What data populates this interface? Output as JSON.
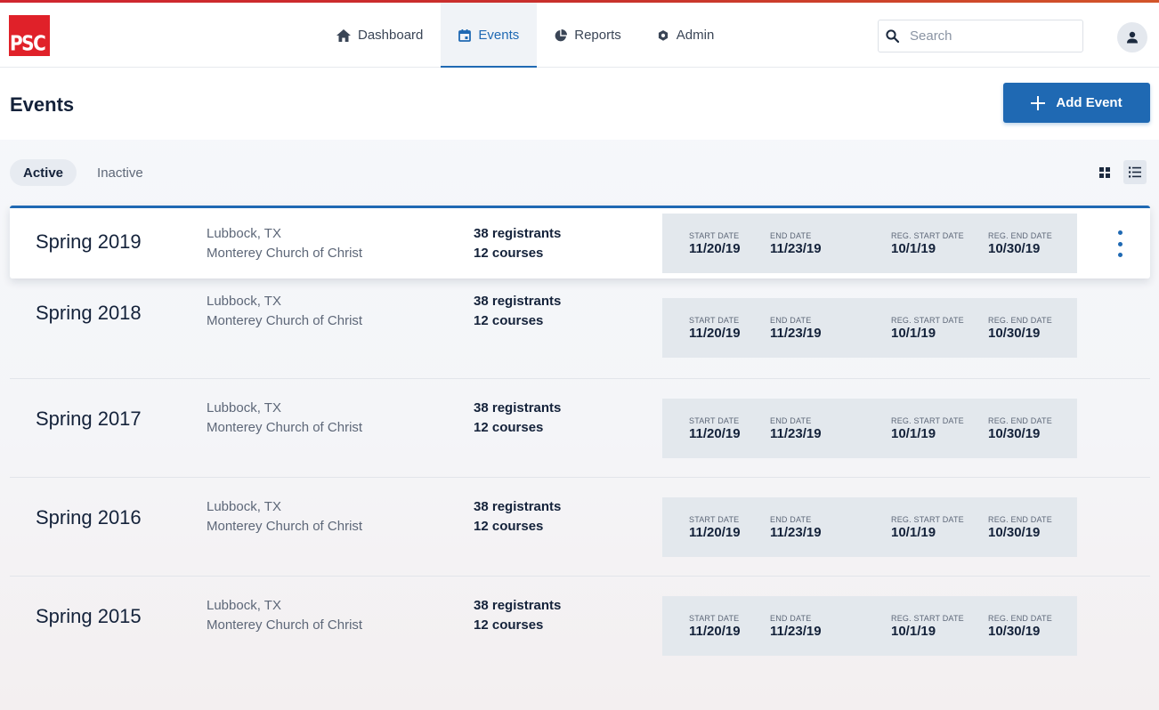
{
  "app": {
    "logo_text": "PSC",
    "brand_color": "#e02129",
    "accent_color": "#1f69b3"
  },
  "nav": {
    "items": [
      {
        "label": "Dashboard",
        "icon": "home-icon",
        "active": false
      },
      {
        "label": "Events",
        "icon": "calendar-icon",
        "active": true
      },
      {
        "label": "Reports",
        "icon": "pie-chart-icon",
        "active": false
      },
      {
        "label": "Admin",
        "icon": "gear-icon",
        "active": false
      }
    ]
  },
  "search": {
    "placeholder": "Search",
    "value": ""
  },
  "page": {
    "title": "Events",
    "add_button_label": "Add Event"
  },
  "filters": [
    {
      "label": "Active",
      "active": true
    },
    {
      "label": "Inactive",
      "active": false
    }
  ],
  "view_toggle": {
    "selected": "list"
  },
  "date_labels": {
    "start": "START DATE",
    "end": "END DATE",
    "reg_start": "REG. START DATE",
    "reg_end": "REG. END DATE"
  },
  "events": [
    {
      "name": "Spring 2019",
      "city": "Lubbock, TX",
      "venue": "Monterey Church of Christ",
      "registrants_count": "38",
      "registrants_label": "registrants",
      "courses_count": "12",
      "courses_label": "courses",
      "start_date": "11/20/19",
      "end_date": "11/23/19",
      "reg_start": "10/1/19",
      "reg_end": "10/30/19",
      "selected": true
    },
    {
      "name": "Spring 2018",
      "city": "Lubbock, TX",
      "venue": "Monterey Church of Christ",
      "registrants_count": "38",
      "registrants_label": "registrants",
      "courses_count": "12",
      "courses_label": "courses",
      "start_date": "11/20/19",
      "end_date": "11/23/19",
      "reg_start": "10/1/19",
      "reg_end": "10/30/19",
      "selected": false
    },
    {
      "name": "Spring 2017",
      "city": "Lubbock, TX",
      "venue": "Monterey Church of Christ",
      "registrants_count": "38",
      "registrants_label": "registrants",
      "courses_count": "12",
      "courses_label": "courses",
      "start_date": "11/20/19",
      "end_date": "11/23/19",
      "reg_start": "10/1/19",
      "reg_end": "10/30/19",
      "selected": false
    },
    {
      "name": "Spring 2016",
      "city": "Lubbock, TX",
      "venue": "Monterey Church of Christ",
      "registrants_count": "38",
      "registrants_label": "registrants",
      "courses_count": "12",
      "courses_label": "courses",
      "start_date": "11/20/19",
      "end_date": "11/23/19",
      "reg_start": "10/1/19",
      "reg_end": "10/30/19",
      "selected": false
    },
    {
      "name": "Spring 2015",
      "city": "Lubbock, TX",
      "venue": "Monterey Church of Christ",
      "registrants_count": "38",
      "registrants_label": "registrants",
      "courses_count": "12",
      "courses_label": "courses",
      "start_date": "11/20/19",
      "end_date": "11/23/19",
      "reg_start": "10/1/19",
      "reg_end": "10/30/19",
      "selected": false
    }
  ]
}
